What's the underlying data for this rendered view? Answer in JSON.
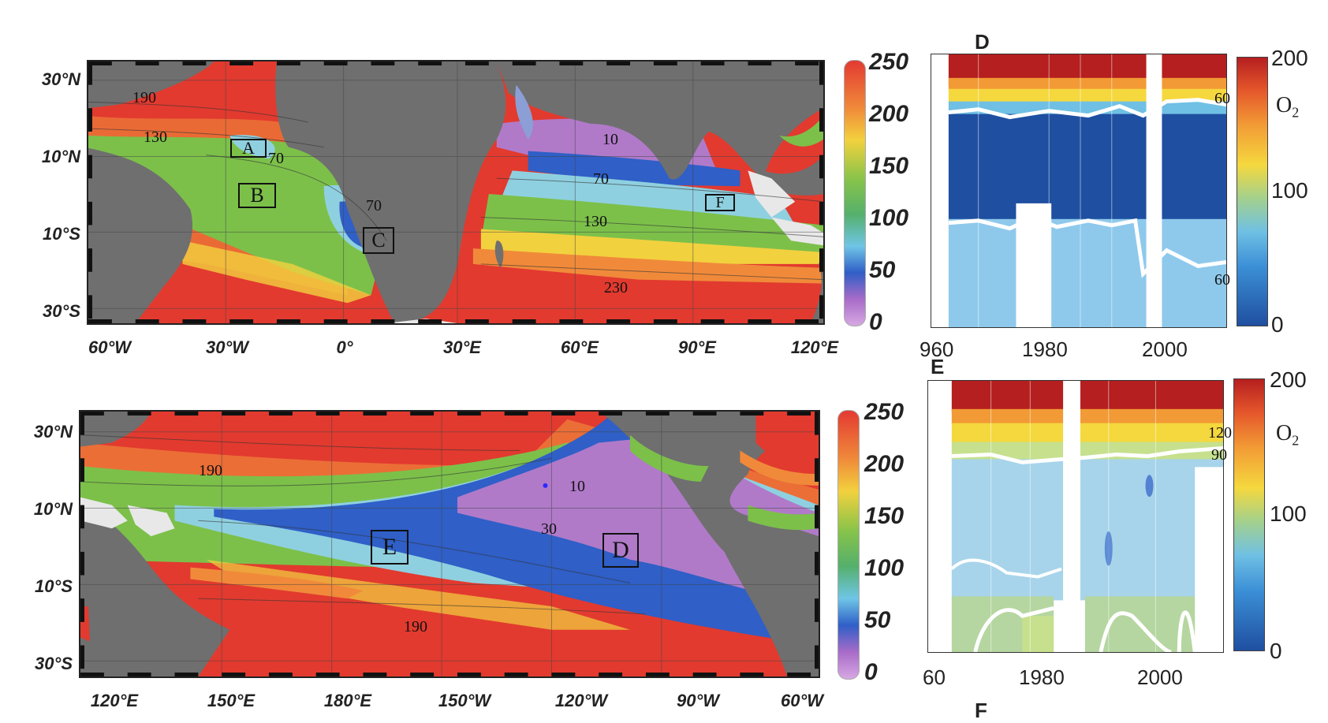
{
  "colors": {
    "land": "#6f6f6f",
    "ice_white": "#e8e8e8",
    "high_o2": "#e23a2f",
    "orange": "#f08a3a",
    "yellow": "#f2d13e",
    "green": "#7cc04a",
    "cyan": "#8fd0e0",
    "blue": "#2f5fc7",
    "purple": "#b07ac9"
  },
  "atlantic_indian_map": {
    "lat_labels": [
      "30°N",
      "10°N",
      "10°S",
      "30°S"
    ],
    "lon_labels": [
      "60°W",
      "30°W",
      "0°",
      "30°E",
      "60°E",
      "90°E",
      "120°E"
    ],
    "contours": [
      "190",
      "130",
      "70",
      "70",
      "10",
      "70",
      "130",
      "230"
    ],
    "regions": [
      "A",
      "B",
      "C",
      "F"
    ],
    "colorbar_ticks": [
      "250",
      "200",
      "150",
      "100",
      "50",
      "0"
    ]
  },
  "pacific_map": {
    "lat_labels": [
      "30°N",
      "10°N",
      "10°S",
      "30°S"
    ],
    "lon_labels": [
      "120°E",
      "150°E",
      "180°E",
      "150°W",
      "120°W",
      "90°W",
      "60°W"
    ],
    "contours": [
      "190",
      "10",
      "30",
      "190"
    ],
    "regions": [
      "E",
      "D"
    ],
    "colorbar_ticks": [
      "250",
      "200",
      "150",
      "100",
      "50",
      "0"
    ]
  },
  "timeseries_D": {
    "letter": "D",
    "years": [
      "960",
      "1980",
      "2000"
    ],
    "colorbar_ticks": [
      "200",
      "100",
      "0"
    ],
    "o2_label": "O",
    "o2_sub": "2",
    "contours": [
      "60",
      "60"
    ]
  },
  "timeseries_E": {
    "letter": "E",
    "years": [
      "60",
      "1980",
      "2000"
    ],
    "colorbar_ticks": [
      "200",
      "100",
      "0"
    ],
    "o2_label": "O",
    "o2_sub": "2",
    "contours": [
      "120",
      "90"
    ],
    "cutoff_letter": "F"
  }
}
